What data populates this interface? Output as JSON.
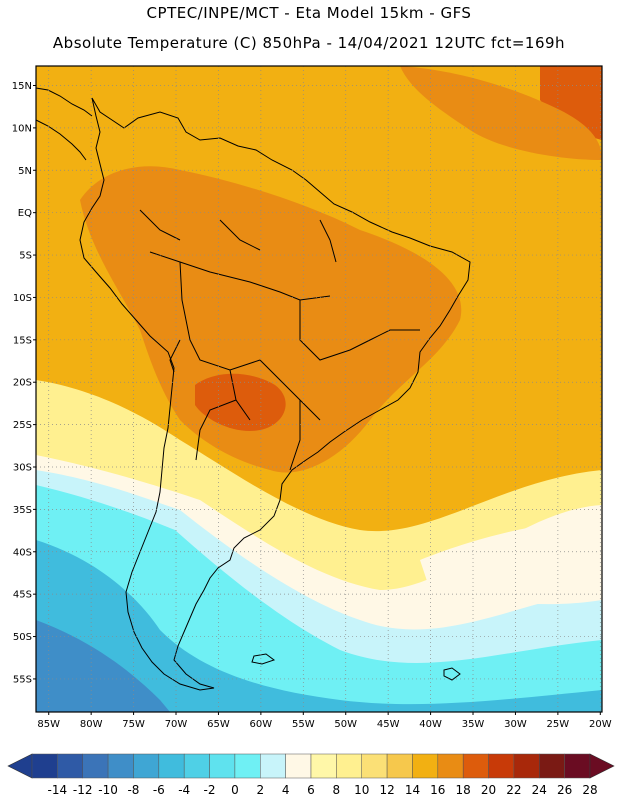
{
  "header": {
    "line1": "CPTEC/INPE/MCT  -   Eta Model 15km  -  GFS",
    "line2": "Absolute Temperature (C) 850hPa  -  14/04/2021  12UTC  fct=169h"
  },
  "axes": {
    "lat_labels": [
      "15N",
      "10N",
      "5N",
      "EQ",
      "5S",
      "10S",
      "15S",
      "20S",
      "25S",
      "30S",
      "35S",
      "40S",
      "45S",
      "50S",
      "55S"
    ],
    "lat_values": [
      15,
      10,
      5,
      0,
      -5,
      -10,
      -15,
      -20,
      -25,
      -30,
      -35,
      -40,
      -45,
      -50,
      -55
    ],
    "lon_labels": [
      "85W",
      "80W",
      "75W",
      "70W",
      "65W",
      "60W",
      "55W",
      "50W",
      "45W",
      "40W",
      "35W",
      "30W",
      "25W",
      "20W"
    ],
    "lon_values": [
      -85,
      -80,
      -75,
      -70,
      -65,
      -60,
      -55,
      -50,
      -45,
      -40,
      -35,
      -30,
      -25,
      -20
    ]
  },
  "colorbar": {
    "labels": [
      "-14",
      "-12",
      "-10",
      "-8",
      "-6",
      "-4",
      "-2",
      "0",
      "2",
      "4",
      "6",
      "8",
      "10",
      "12",
      "14",
      "16",
      "18",
      "20",
      "22",
      "24",
      "26",
      "28"
    ],
    "colors": [
      "#1f3f8f",
      "#2f5aa6",
      "#3b74b8",
      "#3f8ec8",
      "#3fa6d4",
      "#40bcdd",
      "#4fd0e6",
      "#5fe2ee",
      "#6ff0f4",
      "#c8f4fa",
      "#fff8e6",
      "#fff7a8",
      "#fff090",
      "#fbe076",
      "#f6c84c",
      "#f2b012",
      "#e98c14",
      "#dd5c0c",
      "#c83a08",
      "#a8280a",
      "#7a1a14",
      "#6a0c22"
    ]
  },
  "legend_colors": {
    "ocean_north": "#f2b012",
    "land": "#e98c14",
    "hot": "#dd5c0c",
    "warm": "#f6c84c",
    "mild": "#fff090",
    "cream": "#fff8e6",
    "pale_cyan": "#c8f4fa",
    "cyan": "#6ff0f4",
    "cool": "#40bcdd",
    "cold": "#3f8ec8"
  }
}
